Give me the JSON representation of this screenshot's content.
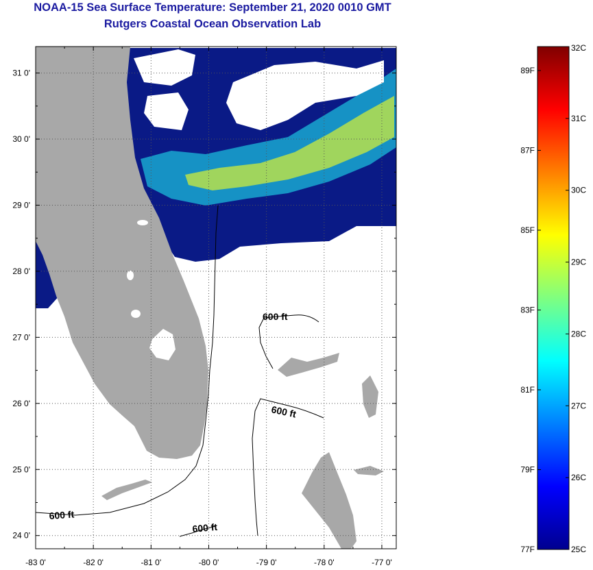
{
  "title_line1": "NOAA-15 Sea Surface Temperature:  September 21, 2020 0010 GMT",
  "title_line2": "Rutgers Coastal Ocean Observation Lab",
  "map": {
    "lon_ticks": [
      "-83 0'",
      "-82 0'",
      "-81 0'",
      "-80 0'",
      "-79 0'",
      "-78 0'",
      "-77 0'"
    ],
    "lat_ticks": [
      "31 0'",
      "30 0'",
      "29 0'",
      "28 0'",
      "27 0'",
      "26 0'",
      "25 0'",
      "24 0'"
    ],
    "lon_range": [
      -83.0,
      -76.75
    ],
    "lat_range": [
      23.8,
      31.4
    ],
    "contour_labels": [
      "600 ft",
      "600 ft",
      "600 ft",
      "600 ft"
    ],
    "colors": {
      "land": "#a8a8a8",
      "cold_water": "#0a1a86",
      "cloud": "#ffffff",
      "grid": "#555555"
    }
  },
  "colorbar": {
    "celsius_labels": [
      "32C",
      "31C",
      "30C",
      "29C",
      "28C",
      "27C",
      "26C",
      "25C"
    ],
    "fahrenheit_labels": [
      "89F",
      "87F",
      "85F",
      "83F",
      "81F",
      "79F",
      "77F"
    ],
    "c_range": [
      25,
      32
    ],
    "colormap": "jet"
  }
}
